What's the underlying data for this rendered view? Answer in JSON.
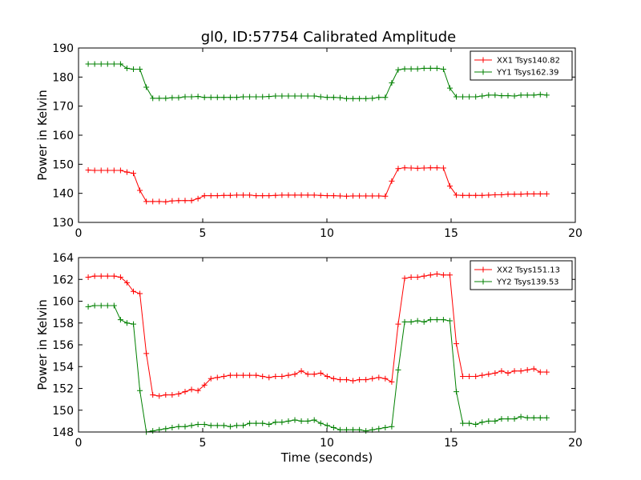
{
  "chart_data": [
    {
      "type": "line",
      "title": "gl0, ID:57754 Calibrated Amplitude",
      "xlabel": "",
      "ylabel": "Power in Kelvin",
      "xlim": [
        0,
        20
      ],
      "ylim": [
        130,
        190
      ],
      "xticks": [
        "0",
        "5",
        "10",
        "15",
        "20"
      ],
      "yticks": [
        "130",
        "140",
        "150",
        "160",
        "170",
        "180",
        "190"
      ],
      "grid": false,
      "legend_position": "top-right",
      "x": [
        0.39,
        0.65,
        0.91,
        1.17,
        1.43,
        1.69,
        1.95,
        2.21,
        2.47,
        2.73,
        2.99,
        3.25,
        3.51,
        3.77,
        4.03,
        4.29,
        4.55,
        4.81,
        5.07,
        5.33,
        5.59,
        5.85,
        6.11,
        6.37,
        6.63,
        6.89,
        7.15,
        7.41,
        7.67,
        7.93,
        8.19,
        8.45,
        8.71,
        8.97,
        9.23,
        9.49,
        9.75,
        10.01,
        10.27,
        10.53,
        10.79,
        11.05,
        11.31,
        11.57,
        11.83,
        12.09,
        12.35,
        12.61,
        12.87,
        13.13,
        13.39,
        13.65,
        13.91,
        14.17,
        14.43,
        14.69,
        14.95,
        15.21,
        15.47,
        15.73,
        15.99,
        16.25,
        16.51,
        16.77,
        17.03,
        17.29,
        17.55,
        17.81,
        18.07,
        18.33,
        18.59,
        18.85
      ],
      "series": [
        {
          "name": "XX1 Tsys140.82",
          "color": "#ff0000",
          "values": [
            148.0,
            147.9,
            147.9,
            147.9,
            147.9,
            147.9,
            147.3,
            146.9,
            141.0,
            137.2,
            137.2,
            137.2,
            137.1,
            137.4,
            137.5,
            137.5,
            137.5,
            138.2,
            139.2,
            139.2,
            139.2,
            139.3,
            139.3,
            139.4,
            139.4,
            139.4,
            139.2,
            139.2,
            139.2,
            139.3,
            139.4,
            139.4,
            139.4,
            139.4,
            139.4,
            139.4,
            139.3,
            139.2,
            139.2,
            139.1,
            139.0,
            139.1,
            139.1,
            139.1,
            139.1,
            139.1,
            139.0,
            144.2,
            148.5,
            148.8,
            148.7,
            148.6,
            148.7,
            148.8,
            148.8,
            148.7,
            142.5,
            139.4,
            139.3,
            139.3,
            139.3,
            139.3,
            139.4,
            139.5,
            139.5,
            139.7,
            139.7,
            139.7,
            139.8,
            139.8,
            139.8,
            139.8
          ]
        },
        {
          "name": "YY1 Tsys162.39",
          "color": "#008000",
          "values": [
            184.5,
            184.5,
            184.5,
            184.5,
            184.5,
            184.5,
            183.0,
            182.7,
            182.7,
            176.5,
            172.7,
            172.7,
            172.7,
            172.9,
            172.9,
            173.2,
            173.2,
            173.3,
            173.0,
            173.0,
            173.0,
            173.0,
            173.0,
            173.0,
            173.2,
            173.2,
            173.2,
            173.2,
            173.3,
            173.5,
            173.5,
            173.5,
            173.5,
            173.5,
            173.5,
            173.5,
            173.2,
            173.0,
            173.0,
            172.9,
            172.6,
            172.6,
            172.6,
            172.6,
            172.7,
            173.0,
            173.0,
            178.0,
            182.5,
            182.8,
            182.8,
            182.8,
            183.0,
            183.0,
            183.0,
            182.7,
            176.2,
            173.2,
            173.2,
            173.2,
            173.2,
            173.5,
            173.8,
            173.8,
            173.6,
            173.6,
            173.5,
            173.8,
            173.8,
            173.8,
            174.0,
            173.8
          ]
        }
      ]
    },
    {
      "type": "line",
      "title": "",
      "xlabel": "Time (seconds)",
      "ylabel": "Power in Kelvin",
      "xlim": [
        0,
        20
      ],
      "ylim": [
        148,
        164
      ],
      "xticks": [
        "0",
        "5",
        "10",
        "15",
        "20"
      ],
      "yticks": [
        "148",
        "150",
        "152",
        "154",
        "156",
        "158",
        "160",
        "162",
        "164"
      ],
      "grid": false,
      "legend_position": "top-right",
      "x": [
        0.39,
        0.65,
        0.91,
        1.17,
        1.43,
        1.69,
        1.95,
        2.21,
        2.47,
        2.73,
        2.99,
        3.25,
        3.51,
        3.77,
        4.03,
        4.29,
        4.55,
        4.81,
        5.07,
        5.33,
        5.59,
        5.85,
        6.11,
        6.37,
        6.63,
        6.89,
        7.15,
        7.41,
        7.67,
        7.93,
        8.19,
        8.45,
        8.71,
        8.97,
        9.23,
        9.49,
        9.75,
        10.01,
        10.27,
        10.53,
        10.79,
        11.05,
        11.31,
        11.57,
        11.83,
        12.09,
        12.35,
        12.61,
        12.87,
        13.13,
        13.39,
        13.65,
        13.91,
        14.17,
        14.43,
        14.69,
        14.95,
        15.21,
        15.47,
        15.73,
        15.99,
        16.25,
        16.51,
        16.77,
        17.03,
        17.29,
        17.55,
        17.81,
        18.07,
        18.33,
        18.59,
        18.85
      ],
      "series": [
        {
          "name": "XX2 Tsys151.13",
          "color": "#ff0000",
          "values": [
            162.2,
            162.3,
            162.3,
            162.3,
            162.3,
            162.2,
            161.7,
            160.9,
            160.7,
            155.2,
            151.4,
            151.3,
            151.4,
            151.4,
            151.5,
            151.7,
            151.9,
            151.8,
            152.3,
            152.9,
            153.0,
            153.1,
            153.2,
            153.2,
            153.2,
            153.2,
            153.2,
            153.1,
            153.0,
            153.1,
            153.1,
            153.2,
            153.3,
            153.6,
            153.3,
            153.3,
            153.4,
            153.1,
            152.9,
            152.8,
            152.8,
            152.7,
            152.8,
            152.8,
            152.9,
            153.0,
            152.9,
            152.6,
            157.9,
            162.1,
            162.2,
            162.2,
            162.3,
            162.4,
            162.5,
            162.4,
            162.4,
            156.1,
            153.1,
            153.1,
            153.1,
            153.2,
            153.3,
            153.4,
            153.6,
            153.4,
            153.6,
            153.6,
            153.7,
            153.8,
            153.5,
            153.5
          ]
        },
        {
          "name": "YY2 Tsys139.53",
          "color": "#008000",
          "values": [
            159.5,
            159.6,
            159.6,
            159.6,
            159.6,
            158.3,
            158.0,
            157.9,
            151.8,
            148.0,
            148.1,
            148.2,
            148.3,
            148.4,
            148.5,
            148.5,
            148.6,
            148.7,
            148.7,
            148.6,
            148.6,
            148.6,
            148.5,
            148.6,
            148.6,
            148.8,
            148.8,
            148.8,
            148.7,
            148.9,
            148.9,
            149.0,
            149.1,
            149.0,
            149.0,
            149.1,
            148.8,
            148.6,
            148.4,
            148.2,
            148.2,
            148.2,
            148.2,
            148.1,
            148.2,
            148.3,
            148.4,
            148.5,
            153.7,
            158.1,
            158.1,
            158.2,
            158.1,
            158.3,
            158.3,
            158.3,
            158.2,
            151.7,
            148.8,
            148.8,
            148.7,
            148.9,
            149.0,
            149.0,
            149.2,
            149.2,
            149.2,
            149.4,
            149.3,
            149.3,
            149.3,
            149.3
          ]
        }
      ]
    }
  ]
}
